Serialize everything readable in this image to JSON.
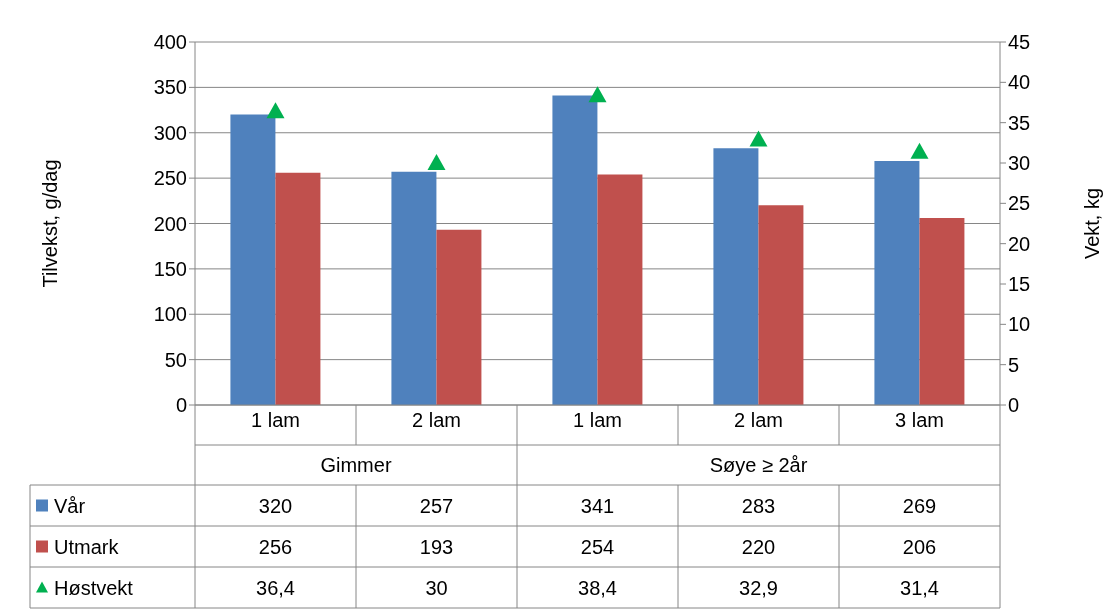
{
  "chart_data": {
    "type": "bar",
    "categories": [
      "1 lam",
      "2 lam",
      "1 lam",
      "2 lam",
      "3 lam"
    ],
    "annotations": [
      "Gimmer",
      "Søye ≥ 2år"
    ],
    "ylabel": "Tilvekst, g/dag",
    "y2label": "Vekt, kg",
    "ylim": [
      0,
      400
    ],
    "yticks": [
      0,
      50,
      100,
      150,
      200,
      250,
      300,
      350,
      400
    ],
    "y2lim": [
      0,
      45
    ],
    "y2ticks": [
      0,
      5,
      10,
      15,
      20,
      25,
      30,
      35,
      40,
      45
    ],
    "grid": "y",
    "legend": "bottom",
    "series": [
      {
        "name": "Vår",
        "color": "#4f81bd",
        "values": [
          320,
          257,
          341,
          283,
          269
        ],
        "value_labels": [
          "320",
          "257",
          "341",
          "283",
          "269"
        ]
      },
      {
        "name": "Utmark",
        "color": "#c0504d",
        "values": [
          256,
          193,
          254,
          220,
          206
        ],
        "value_labels": [
          "256",
          "193",
          "254",
          "220",
          "206"
        ]
      },
      {
        "name": "Høstvekt",
        "type": "scatter",
        "axis": "y2",
        "marker": "triangle",
        "color": "#00b050",
        "values": [
          36.4,
          30,
          38.4,
          32.9,
          31.4
        ],
        "value_labels": [
          "36,4",
          "30",
          "38,4",
          "32,9",
          "31,4"
        ]
      }
    ]
  }
}
